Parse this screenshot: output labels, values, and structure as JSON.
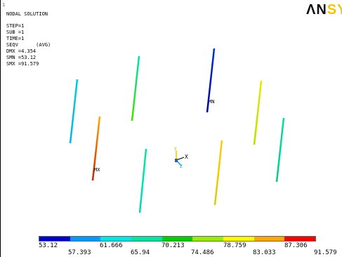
{
  "viewport_id": "1",
  "info": {
    "title": "NODAL SOLUTION",
    "step": "STEP=1",
    "sub": "SUB =1",
    "time": "TIME=1",
    "result": "SEQV      (AVG)",
    "dmx": "DMX =4.354",
    "smn": "SMN =53.12",
    "smx": "SMX =91.579"
  },
  "logo": {
    "dark": "ΛN",
    "yellow": "SYS"
  },
  "markers": {
    "min": "MN",
    "max": "MX"
  },
  "triad": {
    "x": "X",
    "y": "Y",
    "z": "Z"
  },
  "legend": {
    "colors": [
      "#0000d0",
      "#0099ff",
      "#00e5e5",
      "#00e6a0",
      "#00d000",
      "#99ee00",
      "#ffff00",
      "#ffaa00",
      "#ff0000"
    ],
    "top_labels": [
      "53.12",
      "61.666",
      "70.213",
      "78.759",
      "87.306"
    ],
    "bottom_labels": [
      "57.393",
      "65.94",
      "74.486",
      "83.033",
      "91.579"
    ]
  },
  "members": [
    {
      "id": "m1",
      "grad": [
        "#00ccd8",
        "#00b8e0"
      ]
    },
    {
      "id": "m2",
      "grad": [
        "#00e0b0",
        "#44e000"
      ]
    },
    {
      "id": "m3",
      "grad": [
        "#0033cc",
        "#0000aa"
      ]
    },
    {
      "id": "m4",
      "grad": [
        "#e8e800",
        "#bbdd00"
      ]
    },
    {
      "id": "m5",
      "grad": [
        "#ffaa00",
        "#cc2200"
      ]
    },
    {
      "id": "m6",
      "grad": [
        "#00e0a0",
        "#00cc88"
      ]
    },
    {
      "id": "m7",
      "grad": [
        "#00e898",
        "#00d8c8"
      ]
    },
    {
      "id": "m8",
      "grad": [
        "#00e088",
        "#33dd00"
      ]
    },
    {
      "id": "m9",
      "grad": [
        "#ffcc00",
        "#ddcc00"
      ]
    }
  ]
}
